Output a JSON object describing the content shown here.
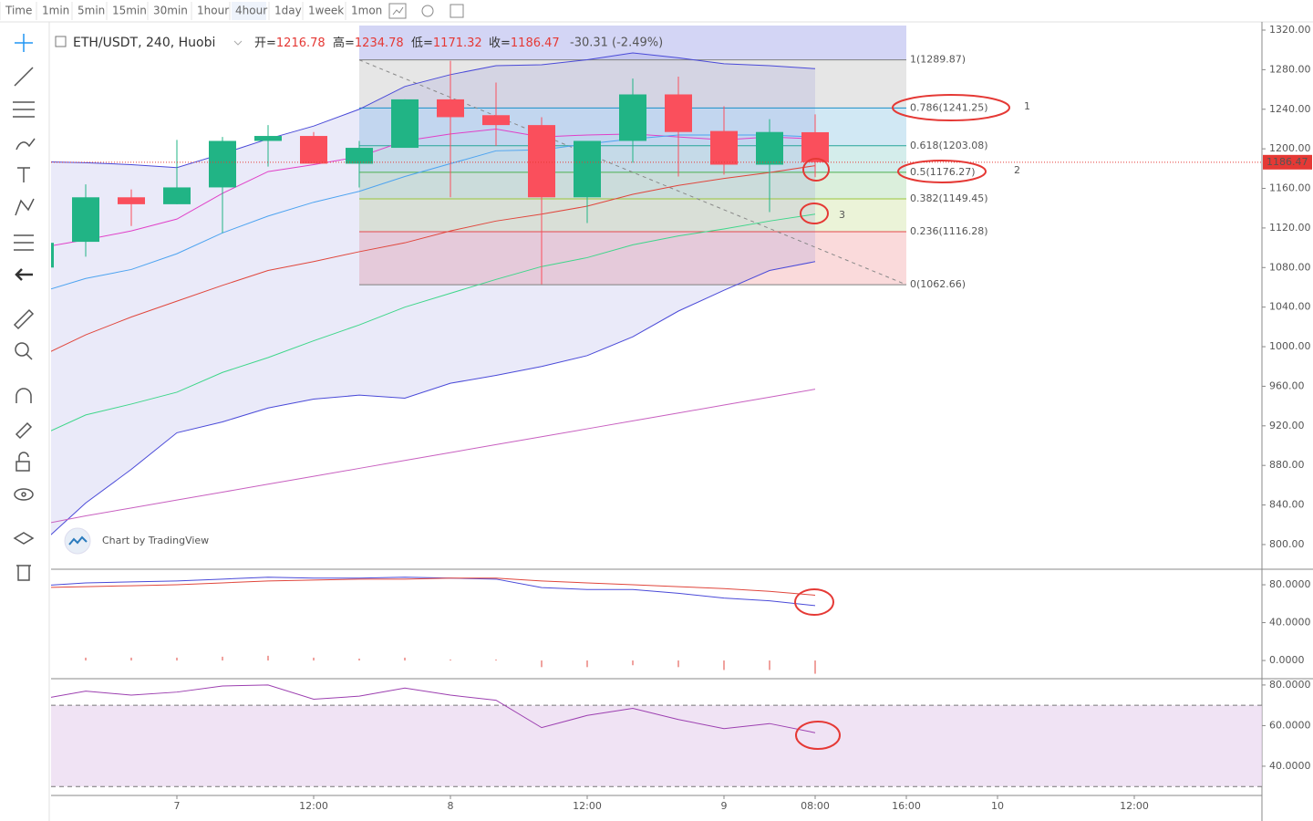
{
  "toolbar": {
    "intervals": [
      "Time",
      "1min",
      "5min",
      "15min",
      "30min",
      "1hour",
      "4hour",
      "1day",
      "1week",
      "1mon"
    ],
    "active": 6
  },
  "legend": {
    "symbol": "ETH/USDT, 240, Huobi",
    "items": [
      {
        "label": "开=",
        "value": 1216.78
      },
      {
        "label": "高=",
        "value": 1234.78
      },
      {
        "label": "低=",
        "value": 1171.32
      },
      {
        "label": "收=",
        "value": 1186.47
      }
    ],
    "change": "-30.31 (-2.49%)"
  },
  "watermark": "Chart by TradingView",
  "annotations": [
    "1",
    "2",
    "3"
  ],
  "chart_data": [
    {
      "type": "candlestick",
      "up_color": "#21b485",
      "down_color": "#fa4f5c",
      "x": [
        -3,
        -2,
        -1,
        0,
        1,
        2,
        3,
        4,
        5,
        6,
        7,
        8,
        9,
        10,
        11,
        12,
        13,
        14
      ],
      "open": [
        1080,
        1106,
        1151,
        1144,
        1161,
        1208,
        1213,
        1185,
        1201,
        1250,
        1234,
        1224,
        1151,
        1208,
        1255,
        1218,
        1184,
        1216.78
      ],
      "high": [
        1110,
        1164,
        1159,
        1209,
        1212,
        1224,
        1217,
        1208,
        1250,
        1289,
        1267,
        1232,
        1208,
        1271,
        1273,
        1243,
        1230,
        1234.78
      ],
      "low": [
        1070,
        1091,
        1122,
        1144,
        1115,
        1182,
        1185,
        1161,
        1201,
        1151,
        1203,
        1063,
        1125,
        1186,
        1172,
        1174,
        1136,
        1171.32
      ],
      "close": [
        1105,
        1151,
        1144,
        1161,
        1208,
        1213,
        1185,
        1201,
        1250,
        1232,
        1224,
        1151,
        1208,
        1255,
        1217,
        1184,
        1217,
        1186.47
      ],
      "overlays": [
        {
          "color": "#4a4ad8",
          "values": [
            1187,
            1186,
            1184,
            1181,
            1195,
            1210,
            1223,
            1240,
            1263,
            1275,
            1284,
            1285,
            1290,
            1297,
            1292,
            1286,
            1284,
            1281
          ]
        },
        {
          "color": "#4a4ad8",
          "values": [
            800,
            842,
            876,
            913,
            924,
            938,
            947,
            951,
            948,
            963,
            971,
            980,
            991,
            1010,
            1036,
            1057,
            1077,
            1086
          ]
        },
        {
          "color": "#e0463c",
          "values": [
            990,
            1012,
            1030,
            1046,
            1062,
            1077,
            1086,
            1096,
            1105,
            1117,
            1127,
            1134,
            1142,
            1154,
            1163,
            1170,
            1176,
            1183
          ]
        },
        {
          "color": "#e040c8",
          "values": [
            1100,
            1108,
            1117,
            1129,
            1155,
            1177,
            1184,
            1192,
            1208,
            1215,
            1220,
            1212,
            1214,
            1215,
            1212,
            1209,
            1212,
            1210
          ]
        },
        {
          "color": "#4ca3f0",
          "values": [
            1055,
            1069,
            1078,
            1094,
            1115,
            1132,
            1146,
            1157,
            1172,
            1185,
            1198,
            1199,
            1205,
            1210,
            1214,
            1214,
            1214,
            1212
          ]
        },
        {
          "color": "#3ed68a",
          "values": [
            910,
            931,
            942,
            954,
            974,
            989,
            1006,
            1022,
            1040,
            1054,
            1068,
            1081,
            1090,
            1103,
            1112,
            1119,
            1127,
            1134
          ]
        },
        {
          "color": "#c860c0",
          "values": [
            820,
            829,
            837,
            845,
            853,
            861,
            869,
            877,
            885,
            893,
            901,
            909,
            917,
            925,
            933,
            941,
            949,
            957
          ]
        }
      ],
      "fib": [
        {
          "label": "1(1289.87)",
          "price": 1289.87,
          "color": "#808080"
        },
        {
          "label": "0.786(1241.25)",
          "price": 1241.25,
          "color": "#1a8ec7"
        },
        {
          "label": "0.618(1203.08)",
          "price": 1203.08,
          "color": "#26a69a"
        },
        {
          "label": "0.5(1176.27)",
          "price": 1176.27,
          "color": "#4caf50"
        },
        {
          "label": "0.382(1149.45)",
          "price": 1149.45,
          "color": "#9bc53a"
        },
        {
          "label": "0.236(1116.28)",
          "price": 1116.28,
          "color": "#e5484d"
        },
        {
          "label": "0(1062.66)",
          "price": 1062.66,
          "color": "#808080"
        }
      ],
      "last_price": 1186.47,
      "xlim": [
        -2.76,
        23.8
      ],
      "xticks": [
        {
          "value": 0,
          "label": "7"
        },
        {
          "value": 3,
          "label": "12:00"
        },
        {
          "value": 6,
          "label": "8"
        },
        {
          "value": 9,
          "label": "12:00"
        },
        {
          "value": 12,
          "label": "9"
        },
        {
          "value": 14,
          "label": "08:00"
        },
        {
          "value": 16,
          "label": "16:00"
        },
        {
          "value": 18,
          "label": "10"
        },
        {
          "value": 21,
          "label": "12:00"
        }
      ],
      "ylim": [
        776.9,
        1328.3
      ],
      "yticks": [
        {
          "value": 800,
          "label": "800.00"
        },
        {
          "value": 840,
          "label": "840.00"
        },
        {
          "value": 880,
          "label": "880.00"
        },
        {
          "value": 920,
          "label": "920.00"
        },
        {
          "value": 960,
          "label": "960.00"
        },
        {
          "value": 1000,
          "label": "1000.00"
        },
        {
          "value": 1040,
          "label": "1040.00"
        },
        {
          "value": 1080,
          "label": "1080.00"
        },
        {
          "value": 1120,
          "label": "1120.00"
        },
        {
          "value": 1160,
          "label": "1160.00"
        },
        {
          "value": 1200,
          "label": "1200.00"
        },
        {
          "value": 1240,
          "label": "1240.00"
        },
        {
          "value": 1280,
          "label": "1280.00"
        },
        {
          "value": 1320,
          "label": "1320.00"
        }
      ]
    },
    {
      "type": "line",
      "series": [
        {
          "color": "#4a4ad8",
          "values": [
            79,
            82,
            83,
            84,
            86,
            88,
            87,
            87,
            88,
            87,
            86,
            77,
            75,
            75,
            71,
            66,
            63,
            58
          ]
        },
        {
          "color": "#e0463c",
          "values": [
            77,
            78,
            79,
            80,
            82,
            84,
            85,
            86,
            86,
            87,
            87,
            84,
            82,
            80,
            78,
            76,
            73,
            69
          ]
        }
      ],
      "histogram": {
        "color": "#e0463c",
        "values": [
          2,
          3,
          3,
          3,
          4,
          5,
          3,
          2,
          3,
          1,
          1,
          -7,
          -7,
          -5,
          -7,
          -10,
          -10,
          -14
        ]
      },
      "ylim": [
        -17.3,
        94.5
      ],
      "yticks": [
        {
          "value": 0,
          "label": "0.0000"
        },
        {
          "value": 40,
          "label": "40.0000"
        },
        {
          "value": 80,
          "label": "80.0000"
        }
      ]
    },
    {
      "type": "line",
      "series": [
        {
          "color": "#9c3fb0",
          "values": [
            73,
            77,
            75,
            76.5,
            79.5,
            80,
            73,
            74.5,
            78.5,
            75,
            72.5,
            59,
            65,
            68.5,
            63,
            58.5,
            61,
            56.5
          ]
        }
      ],
      "band": [
        30,
        70
      ],
      "ylim": [
        26.5,
        82.2
      ],
      "yticks": [
        {
          "value": 40,
          "label": "40.0000"
        },
        {
          "value": 60,
          "label": "60.0000"
        },
        {
          "value": 80,
          "label": "80.0000"
        }
      ]
    }
  ]
}
